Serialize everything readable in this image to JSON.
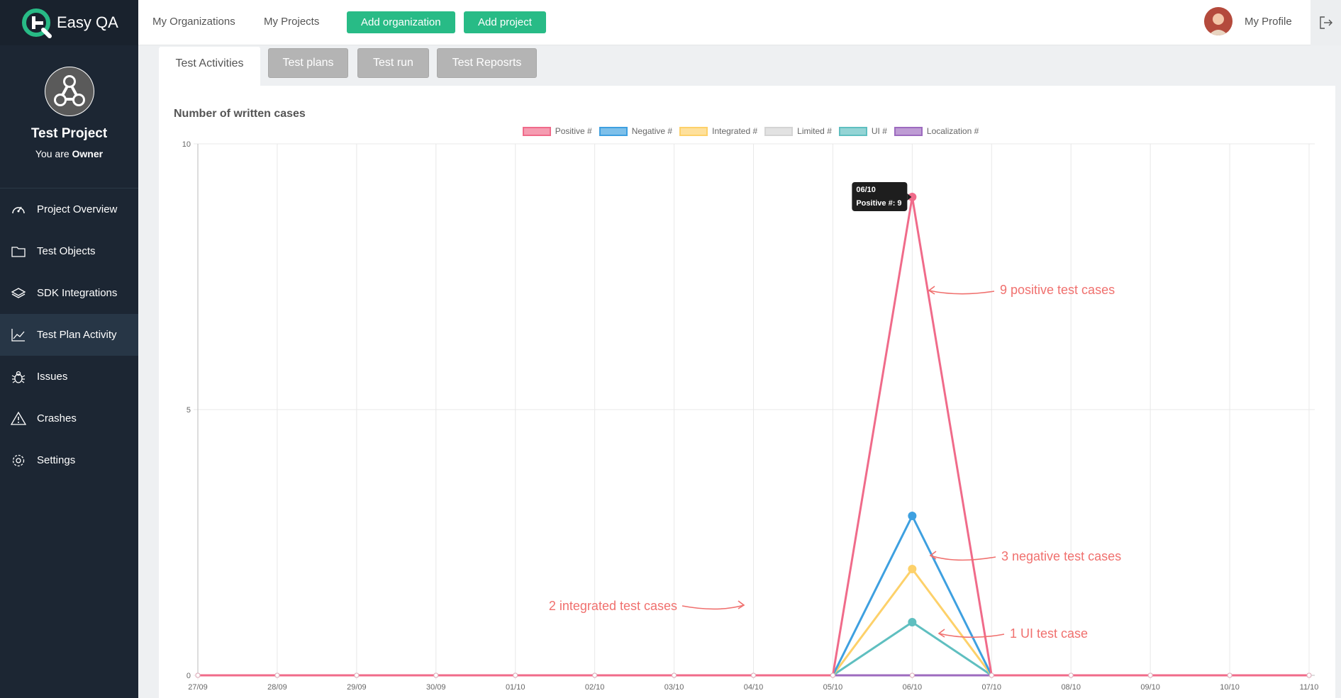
{
  "brand": {
    "name": "Easy QA"
  },
  "project": {
    "name": "Test Project",
    "role_prefix": "You are",
    "role": "Owner"
  },
  "sidebar": {
    "items": [
      {
        "label": "Project Overview",
        "icon": "speedometer-icon"
      },
      {
        "label": "Test Objects",
        "icon": "folder-icon"
      },
      {
        "label": "SDK Integrations",
        "icon": "layers-icon"
      },
      {
        "label": "Test Plan Activity",
        "icon": "line-chart-icon",
        "active": true
      },
      {
        "label": "Issues",
        "icon": "bug-icon"
      },
      {
        "label": "Crashes",
        "icon": "warning-icon"
      },
      {
        "label": "Settings",
        "icon": "gear-icon"
      }
    ]
  },
  "topbar": {
    "my_organizations": "My Organizations",
    "my_projects": "My Projects",
    "add_organization": "Add organization",
    "add_project": "Add project",
    "my_profile": "My Profile"
  },
  "tabs": [
    {
      "label": "Test Activities",
      "active": true
    },
    {
      "label": "Test plans",
      "active": false
    },
    {
      "label": "Test run",
      "active": false
    },
    {
      "label": "Test Reposrts",
      "active": false
    }
  ],
  "colors": {
    "accent": "#28bb86",
    "sidebar": "#1c2633",
    "annotation": "#f0706e"
  },
  "chart_data": {
    "type": "line",
    "title": "Number of written cases",
    "x": [
      "27/09",
      "28/09",
      "29/09",
      "30/09",
      "01/10",
      "02/10",
      "03/10",
      "04/10",
      "05/10",
      "06/10",
      "07/10",
      "08/10",
      "09/10",
      "10/10",
      "11/10"
    ],
    "ylim": [
      0,
      10
    ],
    "yticks": [
      0,
      5,
      10
    ],
    "grid": true,
    "legend_position": "top-center",
    "series": [
      {
        "name": "Positive #",
        "color": "#f06b8a",
        "values": [
          0,
          0,
          0,
          0,
          0,
          0,
          0,
          0,
          0,
          9,
          0,
          0,
          0,
          0,
          0
        ]
      },
      {
        "name": "Negative #",
        "color": "#3ea0e0",
        "values": [
          0,
          0,
          0,
          0,
          0,
          0,
          0,
          0,
          0,
          3,
          0,
          0,
          0,
          0,
          0
        ]
      },
      {
        "name": "Integrated #",
        "color": "#fdd16a",
        "values": [
          0,
          0,
          0,
          0,
          0,
          0,
          0,
          0,
          0,
          2,
          0,
          0,
          0,
          0,
          0
        ]
      },
      {
        "name": "Limited #",
        "color": "#d4d4d4",
        "values": [
          0,
          0,
          0,
          0,
          0,
          0,
          0,
          0,
          0,
          0,
          0,
          0,
          0,
          0,
          0
        ]
      },
      {
        "name": "UI #",
        "color": "#5fbfc0",
        "values": [
          0,
          0,
          0,
          0,
          0,
          0,
          0,
          0,
          0,
          1,
          0,
          0,
          0,
          0,
          0
        ]
      },
      {
        "name": "Localization #",
        "color": "#9d6bbf",
        "values": [
          0,
          0,
          0,
          0,
          0,
          0,
          0,
          0,
          0,
          0,
          0,
          0,
          0,
          0,
          0
        ]
      }
    ],
    "tooltip": {
      "title": "06/10",
      "text": "Positive #: 9"
    },
    "annotations": [
      {
        "text": "9 positive test cases"
      },
      {
        "text": "3 negative test cases"
      },
      {
        "text": "2 integrated test cases"
      },
      {
        "text": "1 UI test case"
      }
    ]
  }
}
